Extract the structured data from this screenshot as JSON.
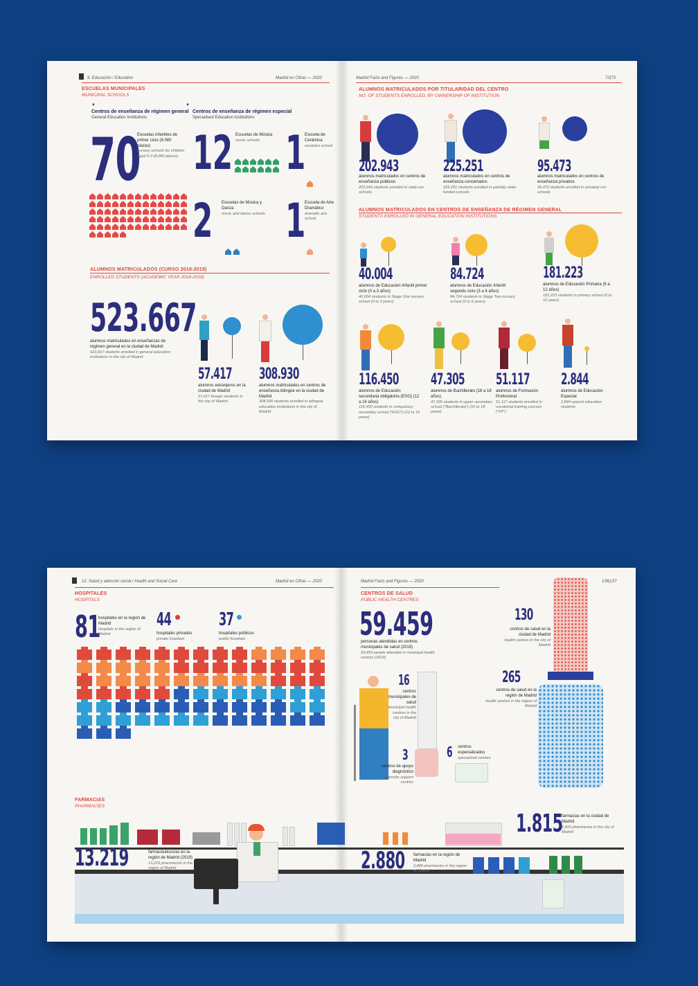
{
  "spread1": {
    "left": {
      "running_head": "9. Educación / Education",
      "section_title": "ESCUELAS MUNICIPALES",
      "section_title_en": "MUNICIPAL SCHOOLS",
      "general_title": "Centros de enseñanza de régimen general",
      "general_title_en": "General Education Institutions",
      "special_title": "Centros de enseñanza de régimen especial",
      "special_title_en": "Specialised Education Institutions",
      "nursery": {
        "number": "70",
        "desc": "Escuelas infantiles de primer ciclo (8.080 plazas)",
        "desc_en": "nursery schools for children aged 0-3 (8,080 places)"
      },
      "music": {
        "number": "12",
        "desc": "Escuelas de Música",
        "desc_en": "music schools"
      },
      "ceramics": {
        "number": "1",
        "desc": "Escuela de Cerámica",
        "desc_en": "ceramics school"
      },
      "dance": {
        "number": "2",
        "desc": "Escuelas de Música y Danza",
        "desc_en": "music and dance schools"
      },
      "drama": {
        "number": "1",
        "desc": "Escuela de Arte Dramático",
        "desc_en": "dramatic arts school"
      },
      "enrolled_title": "ALUMNOS MATRICULADOS (CURSO 2018-2019)",
      "enrolled_title_en": "ENROLLED STUDENTS (ACADEMIC YEAR 2018-2019)",
      "total": {
        "number": "523.667",
        "desc": "alumnos matriculados en enseñanzas de régimen general en la ciudad de Madrid",
        "desc_en": "523,667 students enrolled in general education institutions in the city of Madrid"
      },
      "foreign": {
        "number": "57.417",
        "desc": "alumnos extranjeros en la ciudad de Madrid",
        "desc_en": "57,417 foreign students in the city of Madrid"
      },
      "bilingual": {
        "number": "308.930",
        "desc": "alumnos matriculados en centros de enseñanza bilingüe en la ciudad de Madrid",
        "desc_en": "308,930 students enrolled in bilingual education institutions in the city of Madrid"
      }
    },
    "right": {
      "running_head_left": "Madrid en Cifras — 2020",
      "running_head": "Madrid Facts and Figures — 2020",
      "page_numbers": "72|73",
      "ownership_title": "ALUMNOS MATRICULADOS POR TITULARIDAD DEL CENTRO",
      "ownership_title_en": "NO. OF STUDENTS ENROLLED, BY OWNERSHIP OF INSTITUTION",
      "public": {
        "number": "202.943",
        "desc": "alumnos matriculados en centros de enseñanza públicos",
        "desc_en": "202,943 students enrolled in state-run schools"
      },
      "concerted": {
        "number": "225.251",
        "desc": "alumnos matriculados en centros de enseñanza concertados",
        "desc_en": "225,251 students enrolled in partially state-funded schools"
      },
      "private": {
        "number": "95.473",
        "desc": "alumnos matriculados en centros de enseñanza privados",
        "desc_en": "95,473 students enrolled in privately-run schools"
      },
      "general_title": "ALUMNOS MATRICULADOS EN CENTROS DE ENSEÑANZA DE RÉGIMEN GENERAL",
      "general_title_en": "STUDENTS ENROLLED IN GENERAL EDUCATION INSTITUTIONS",
      "infant1": {
        "number": "40.004",
        "desc": "alumnos de Educación Infantil primer ciclo (0 a 3 años)",
        "desc_en": "40,004 students in Stage One nursery school (0 to 3 years)"
      },
      "infant2": {
        "number": "84.724",
        "desc": "alumnos de Educación Infantil segundo ciclo (3 a 6 años)",
        "desc_en": "84,724 students in Stage Two nursery school (3 to 6 years)"
      },
      "primary": {
        "number": "181.223",
        "desc": "alumnos de Educación Primaria (6 a 12 años)",
        "desc_en": "181,223 students in primary school (6 to 12 years)"
      },
      "eso": {
        "number": "116.450",
        "desc": "alumnos de Educación secundaria obligatoria (ESO) (12 a 16 años)",
        "desc_en": "116,450 students in compulsory secondary school (\"ESO\") (12 to 16 years)"
      },
      "bach": {
        "number": "47.305",
        "desc": "alumnos de Bachillerato (16 a 18 años)",
        "desc_en": "47,305 students in upper secondary school (\"Bachillerato\") (16 to 18 years)"
      },
      "fp": {
        "number": "51.117",
        "desc": "alumnos de Formación Profesional",
        "desc_en": "51,117 students enrolled in vocational training courses (\"FP\")"
      },
      "special": {
        "number": "2.844",
        "desc": "alumnos de Educación Especial",
        "desc_en": "2,844 special education students"
      }
    }
  },
  "spread2": {
    "left": {
      "running_head": "12. Salud y atención social  / Health and Social Care",
      "running_head_right": "Madrid en Cifras — 2020",
      "section_title": "HOSPITALES",
      "section_title_en": "HOSPITALS",
      "hospitals": {
        "number": "81",
        "desc": "hospitales en la región de Madrid",
        "desc_en": "hospitals in the region of Madrid"
      },
      "private": {
        "number": "44",
        "desc": "hospitales privados",
        "desc_en": "private hospitals"
      },
      "public": {
        "number": "37",
        "desc": "hospitales públicos",
        "desc_en": "public hospitals"
      },
      "pharm_title": "FARMACIAS",
      "pharm_title_en": "PHARMACIES",
      "pharmacists": {
        "number": "13.219",
        "desc": "farmacéuticos/as en la región de Madrid (2019)",
        "desc_en": "13,219 pharmacists in the region of Madrid"
      }
    },
    "right": {
      "running_head": "Madrid Facts and Figures — 2020",
      "page_numbers": "136|137",
      "section_title": "CENTROS DE SALUD",
      "section_title_en": "PUBLIC HEALTH CENTRES",
      "attended": {
        "number": "59.459",
        "desc": "personas atendidas en centros municipales de salud (2019)",
        "desc_en": "59,459 people attended in municipal health centres (2019)"
      },
      "city_centres": {
        "number": "130",
        "desc": "centros de salud en la ciudad de Madrid",
        "desc_en": "health centres in the city of Madrid"
      },
      "municipal": {
        "number": "16",
        "desc": "centros municipales de salud",
        "desc_en": "municipal health centres in the city of Madrid"
      },
      "region_centres": {
        "number": "265",
        "desc": "centros de salud en la región de Madrid",
        "desc_en": "health centres in the region of Madrid"
      },
      "support": {
        "number": "3",
        "desc": "centros de apoyo diagnóstico",
        "desc_en": "diagnostic support centres"
      },
      "specialised": {
        "number": "6",
        "desc": "centros especializados",
        "desc_en": "specialised centres"
      },
      "pharm_city": {
        "number": "1.815",
        "desc": "farmacias en la ciudad de Madrid",
        "desc_en": "1,815 pharmacies in the city of Madrid"
      },
      "pharm_region": {
        "number": "2.880",
        "desc": "farmacias en la región de Madrid",
        "desc_en": "2,880 pharmacies in the region of Madrid"
      }
    }
  },
  "colors": {
    "navy": "#2b2e7c",
    "red": "#e0403a",
    "blue_circle": "#2b3f9f",
    "sky_circle": "#2f8fcf",
    "yellow_circle": "#f6bd32",
    "background": "#0e3f80"
  }
}
